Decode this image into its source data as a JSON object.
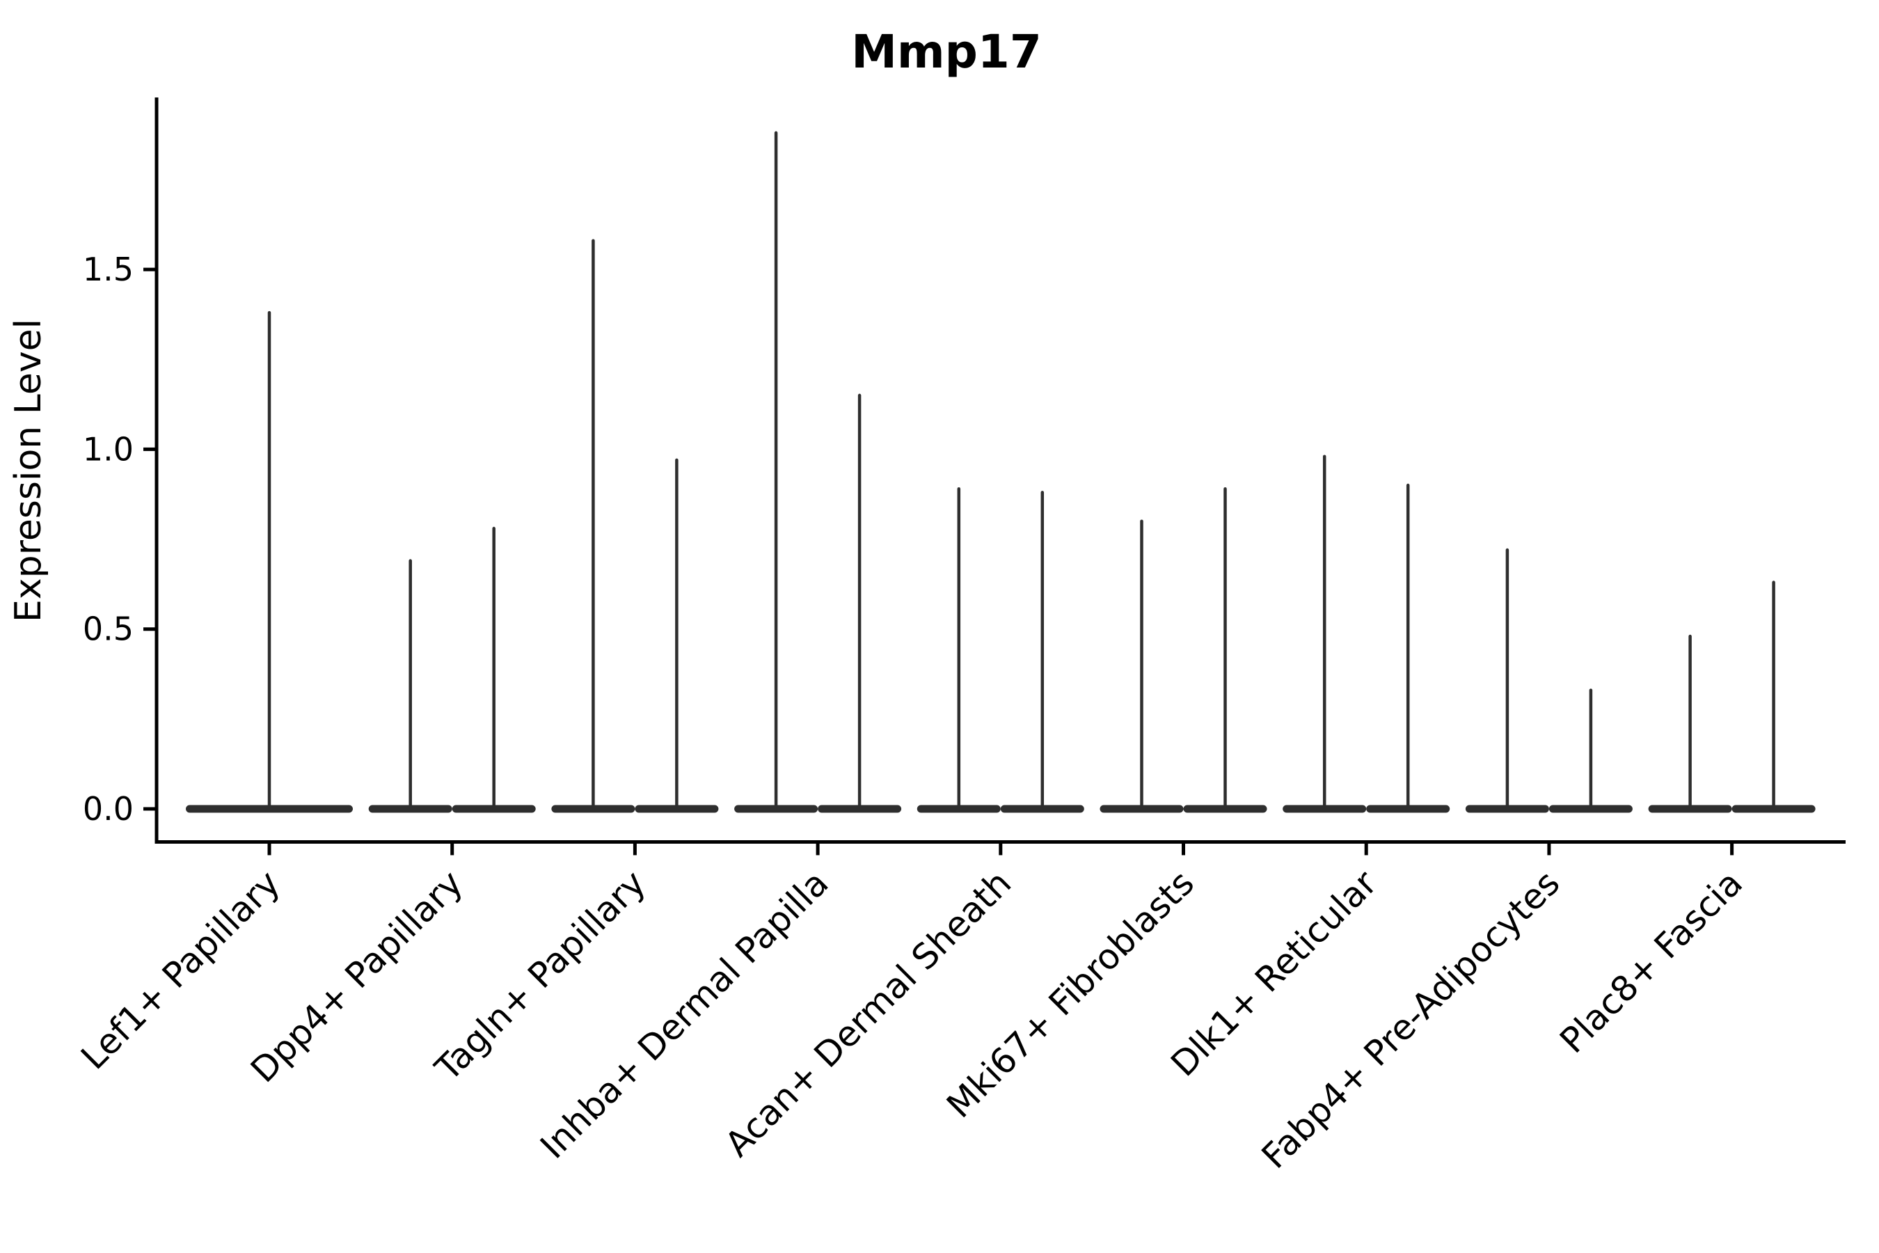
{
  "chart_data": {
    "type": "violin",
    "title": "Mmp17",
    "ylabel": "Expression Level",
    "xlabel": "",
    "yticks": [
      0.0,
      0.5,
      1.0,
      1.5
    ],
    "ytick_labels": [
      "0.0",
      "0.5",
      "1.0",
      "1.5"
    ],
    "ylim": [
      -0.09,
      1.98
    ],
    "grid": false,
    "legend": "none",
    "categories": [
      "Lef1+ Papillary",
      "Dpp4+ Papillary",
      "Tagln+ Papillary",
      "Inhba+ Dermal Papilla",
      "Acan+ Dermal Sheath",
      "Mki67+ Fibroblasts",
      "Dlk1+ Reticular",
      "Fabp4+ Pre-Adipocytes",
      "Plac8+ Fascia"
    ],
    "violins": [
      {
        "category": "Lef1+ Papillary",
        "max_values": [
          1.38
        ]
      },
      {
        "category": "Dpp4+ Papillary",
        "max_values": [
          0.69,
          0.78
        ]
      },
      {
        "category": "Tagln+ Papillary",
        "max_values": [
          1.58,
          0.97
        ]
      },
      {
        "category": "Inhba+ Dermal Papilla",
        "max_values": [
          1.88,
          1.15
        ]
      },
      {
        "category": "Acan+ Dermal Sheath",
        "max_values": [
          0.89,
          0.88
        ]
      },
      {
        "category": "Mki67+ Fibroblasts",
        "max_values": [
          0.8,
          0.89
        ]
      },
      {
        "category": "Dlk1+ Reticular",
        "max_values": [
          0.98,
          0.9
        ]
      },
      {
        "category": "Fabp4+ Pre-Adipocytes",
        "max_values": [
          0.72,
          0.33
        ]
      },
      {
        "category": "Plac8+ Fascia",
        "max_values": [
          0.48,
          0.63
        ]
      }
    ],
    "description": "Violin plot of expression; each violin collapses to a wide flat base at 0 with a thin spike up to its maximum expression value. All categories contain two side-by-side violins except the first, which has a single full-width violin.",
    "colors": {
      "violin": "#2e2e2e",
      "spine": "#000000",
      "text": "#000000",
      "background": "#ffffff"
    }
  }
}
